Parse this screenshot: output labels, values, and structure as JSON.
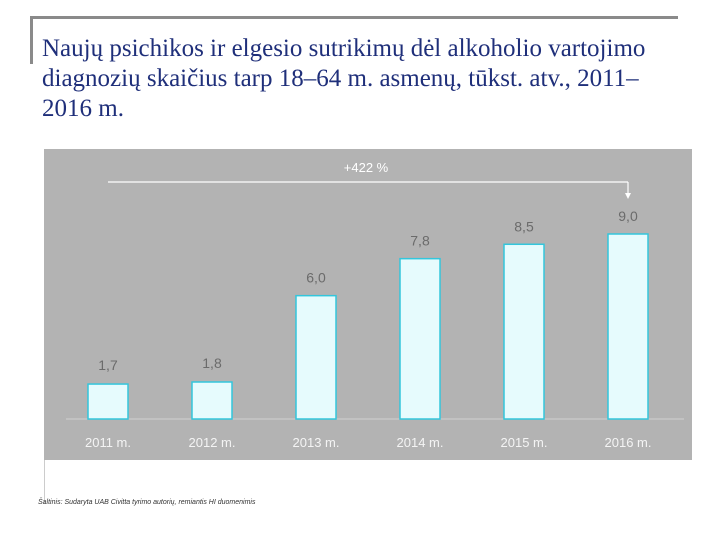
{
  "title": "Naujų psichikos ir elgesio sutrikimų dėl alkoholio vartojimo diagnozių skaičius tarp 18–64 m. asmenų, tūkst. atv., 2011–2016 m.",
  "source": "Šaltinis: Sudaryta UAB Civitta tyrimo autorių, remiantis HI duomenimis",
  "chart_data": {
    "type": "bar",
    "categories": [
      "2011 m.",
      "2012 m.",
      "2013 m.",
      "2014 m.",
      "2015 m.",
      "2016 m."
    ],
    "values": [
      1.7,
      1.8,
      6.0,
      7.8,
      8.5,
      9.0
    ],
    "value_labels": [
      "1,7",
      "1,8",
      "6,0",
      "7,8",
      "8,5",
      "9,0"
    ],
    "annotation": "+422 %",
    "ylim": [
      0,
      10
    ],
    "grid": false,
    "colors": {
      "background": "#b3b3b3",
      "bar_fill": "#e6fbfd",
      "bar_stroke": "#33c6dc",
      "label": "#6b6b6b",
      "axis_text": "#f4f4f4",
      "annotation": "#ffffff"
    }
  }
}
